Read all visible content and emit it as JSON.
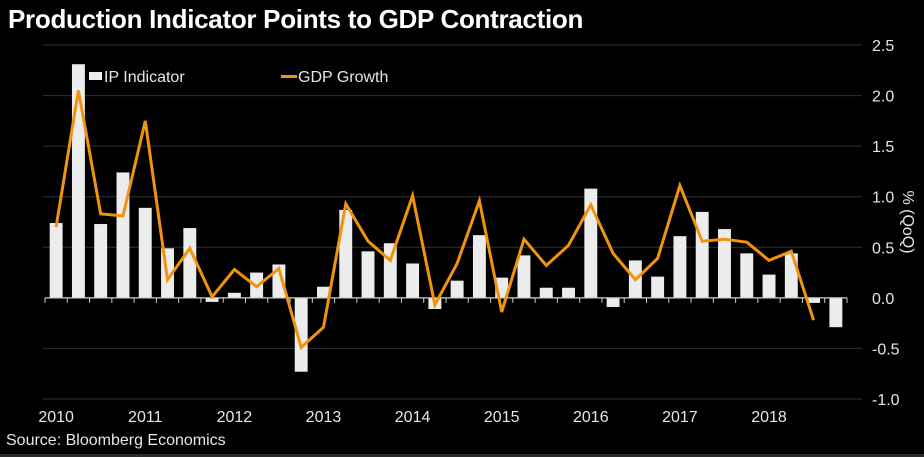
{
  "title": "Production Indicator Points to GDP Contraction",
  "source": "Source: Bloomberg Economics",
  "colors": {
    "background": "#000000",
    "bar": "#ececec",
    "line": "#f0930f",
    "grid": "#333333",
    "text": "#e6e6e6"
  },
  "chart_data": {
    "type": "bar+line",
    "title": "Production Indicator Points to GDP Contraction",
    "xlabel": "",
    "ylabel": "% (QoQ)",
    "ylim": [
      -1.0,
      2.5
    ],
    "yticks": [
      "2.5",
      "2.0",
      "1.5",
      "1.0",
      "0.5",
      "0.0",
      "-0.5",
      "-1.0"
    ],
    "ytick_values": [
      2.5,
      2.0,
      1.5,
      1.0,
      0.5,
      0.0,
      -0.5,
      -1.0
    ],
    "y_axis_side": "right",
    "grid": true,
    "legend_position": "top-left",
    "year_labels": [
      "2010",
      "2011",
      "2012",
      "2013",
      "2014",
      "2015",
      "2016",
      "2017",
      "2018"
    ],
    "categories": [
      "2010Q1",
      "2010Q2",
      "2010Q3",
      "2010Q4",
      "2011Q1",
      "2011Q2",
      "2011Q3",
      "2011Q4",
      "2012Q1",
      "2012Q2",
      "2012Q3",
      "2012Q4",
      "2013Q1",
      "2013Q2",
      "2013Q3",
      "2013Q4",
      "2014Q1",
      "2014Q2",
      "2014Q3",
      "2014Q4",
      "2015Q1",
      "2015Q2",
      "2015Q3",
      "2015Q4",
      "2016Q1",
      "2016Q2",
      "2016Q3",
      "2016Q4",
      "2017Q1",
      "2017Q2",
      "2017Q3",
      "2017Q4",
      "2018Q1",
      "2018Q2",
      "2018Q3",
      "2018Q4"
    ],
    "series": [
      {
        "name": "IP Indicator",
        "type": "bar",
        "values": [
          0.74,
          2.31,
          0.73,
          1.24,
          0.89,
          0.49,
          0.69,
          -0.04,
          0.05,
          0.25,
          0.33,
          -0.73,
          0.11,
          0.87,
          0.46,
          0.54,
          0.34,
          -0.11,
          0.17,
          0.62,
          0.2,
          0.42,
          0.1,
          0.1,
          1.08,
          -0.09,
          0.37,
          0.21,
          0.61,
          0.85,
          0.68,
          0.44,
          0.23,
          0.44,
          -0.05,
          -0.29
        ]
      },
      {
        "name": "GDP Growth",
        "type": "line",
        "values": [
          0.7,
          2.05,
          0.83,
          0.81,
          1.75,
          0.18,
          0.49,
          0.01,
          0.28,
          0.11,
          0.29,
          -0.49,
          -0.29,
          0.93,
          0.56,
          0.37,
          1.01,
          -0.07,
          0.34,
          0.96,
          -0.14,
          0.58,
          0.32,
          0.52,
          0.92,
          0.44,
          0.18,
          0.39,
          1.11,
          0.56,
          0.58,
          0.55,
          0.37,
          0.46,
          -0.22,
          null
        ]
      }
    ]
  }
}
